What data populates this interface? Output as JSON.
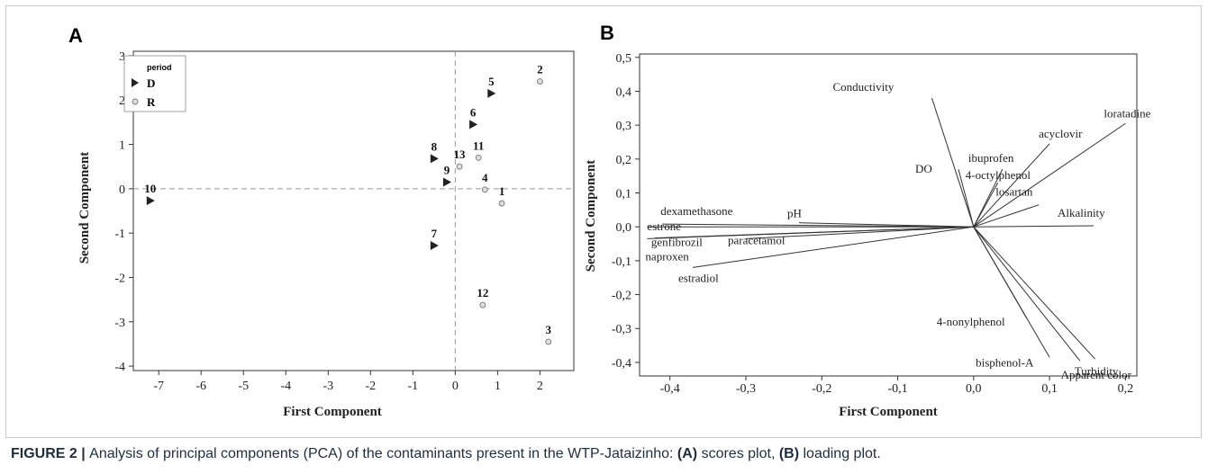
{
  "caption": {
    "prefix": "FIGURE 2 | ",
    "text1": "Analysis of principal components (PCA) of the contaminants present in the WTP-Jataizinho: ",
    "a_tag": "(A)",
    "text2": " scores plot, ",
    "b_tag": "(B)",
    "text3": " loading plot."
  },
  "chart_data": [
    {
      "panel": "A",
      "type": "scatter",
      "title": "",
      "xlabel": "First Component",
      "ylabel": "Second Component",
      "xlim": [
        -7.6,
        2.8
      ],
      "ylim": [
        -4.1,
        3.1
      ],
      "x_ticks": [
        -7,
        -6,
        -5,
        -4,
        -3,
        -2,
        -1,
        0,
        1,
        2
      ],
      "y_ticks": [
        3,
        2,
        1,
        0,
        -1,
        -2,
        -3,
        -4
      ],
      "reference_lines": {
        "x": 0,
        "y": 0
      },
      "legend": {
        "title": "period",
        "placement": "top-left"
      },
      "series": [
        {
          "name": "D",
          "marker": "triangle",
          "points": [
            {
              "label": "5",
              "x": 0.85,
              "y": 2.15
            },
            {
              "label": "6",
              "x": 0.42,
              "y": 1.45
            },
            {
              "label": "8",
              "x": -0.5,
              "y": 0.68
            },
            {
              "label": "9",
              "x": -0.2,
              "y": 0.15
            },
            {
              "label": "10",
              "x": -7.2,
              "y": -0.27
            },
            {
              "label": "7",
              "x": -0.5,
              "y": -1.28
            }
          ]
        },
        {
          "name": "R",
          "marker": "circle",
          "points": [
            {
              "label": "2",
              "x": 2.0,
              "y": 2.42
            },
            {
              "label": "11",
              "x": 0.55,
              "y": 0.7
            },
            {
              "label": "13",
              "x": 0.1,
              "y": 0.5
            },
            {
              "label": "4",
              "x": 0.7,
              "y": -0.02
            },
            {
              "label": "1",
              "x": 1.1,
              "y": -0.33
            },
            {
              "label": "12",
              "x": 0.65,
              "y": -2.62
            },
            {
              "label": "3",
              "x": 2.2,
              "y": -3.45
            }
          ]
        }
      ]
    },
    {
      "panel": "B",
      "type": "scatter",
      "title": "",
      "xlabel": "First Component",
      "ylabel": "Second Component",
      "xlim": [
        -0.44,
        0.215
      ],
      "ylim": [
        -0.44,
        0.51
      ],
      "x_ticks": [
        "-0,4",
        "-0,3",
        "-0,2",
        "-0,1",
        "0,0",
        "0,1",
        "0,2"
      ],
      "x_tick_values": [
        -0.4,
        -0.3,
        -0.2,
        -0.1,
        0.0,
        0.1,
        0.2
      ],
      "y_ticks": [
        "0,5",
        "0,4",
        "0,3",
        "0,2",
        "0,1",
        "0,0",
        "-0,1",
        "-0,2",
        "-0,3",
        "-0,4"
      ],
      "y_tick_values": [
        0.5,
        0.4,
        0.3,
        0.2,
        0.1,
        0.0,
        -0.1,
        -0.2,
        -0.3,
        -0.4
      ],
      "loadings": [
        {
          "label": "Conductivity",
          "x": -0.055,
          "y": 0.38
        },
        {
          "label": "loratadine",
          "x": 0.2,
          "y": 0.305
        },
        {
          "label": "acyclovir",
          "x": 0.1,
          "y": 0.245
        },
        {
          "label": "ibuprofen",
          "x": 0.038,
          "y": 0.17
        },
        {
          "label": "4-octylphenol",
          "x": 0.032,
          "y": 0.13
        },
        {
          "label": "DO",
          "x": -0.02,
          "y": 0.17
        },
        {
          "label": "losartan",
          "x": 0.086,
          "y": 0.065
        },
        {
          "label": "Alkalinity",
          "x": 0.158,
          "y": 0.003
        },
        {
          "label": "pH",
          "x": -0.23,
          "y": 0.012
        },
        {
          "label": "dexamethasone",
          "x": -0.41,
          "y": 0.008
        },
        {
          "label": "estrone",
          "x": -0.43,
          "y": 0.0
        },
        {
          "label": "genfibrozil",
          "x": -0.42,
          "y": -0.033
        },
        {
          "label": "naproxen",
          "x": -0.43,
          "y": -0.035
        },
        {
          "label": "paracetamol",
          "x": -0.3,
          "y": -0.035
        },
        {
          "label": "estradiol",
          "x": -0.37,
          "y": -0.12
        },
        {
          "label": "4-nonylphenol",
          "x": 0.07,
          "y": -0.27
        },
        {
          "label": "Apparent color",
          "x": 0.16,
          "y": -0.39
        },
        {
          "label": "bisphenol-A",
          "x": 0.1,
          "y": -0.385
        },
        {
          "label": "Turbidity",
          "x": 0.14,
          "y": -0.395
        }
      ]
    }
  ]
}
